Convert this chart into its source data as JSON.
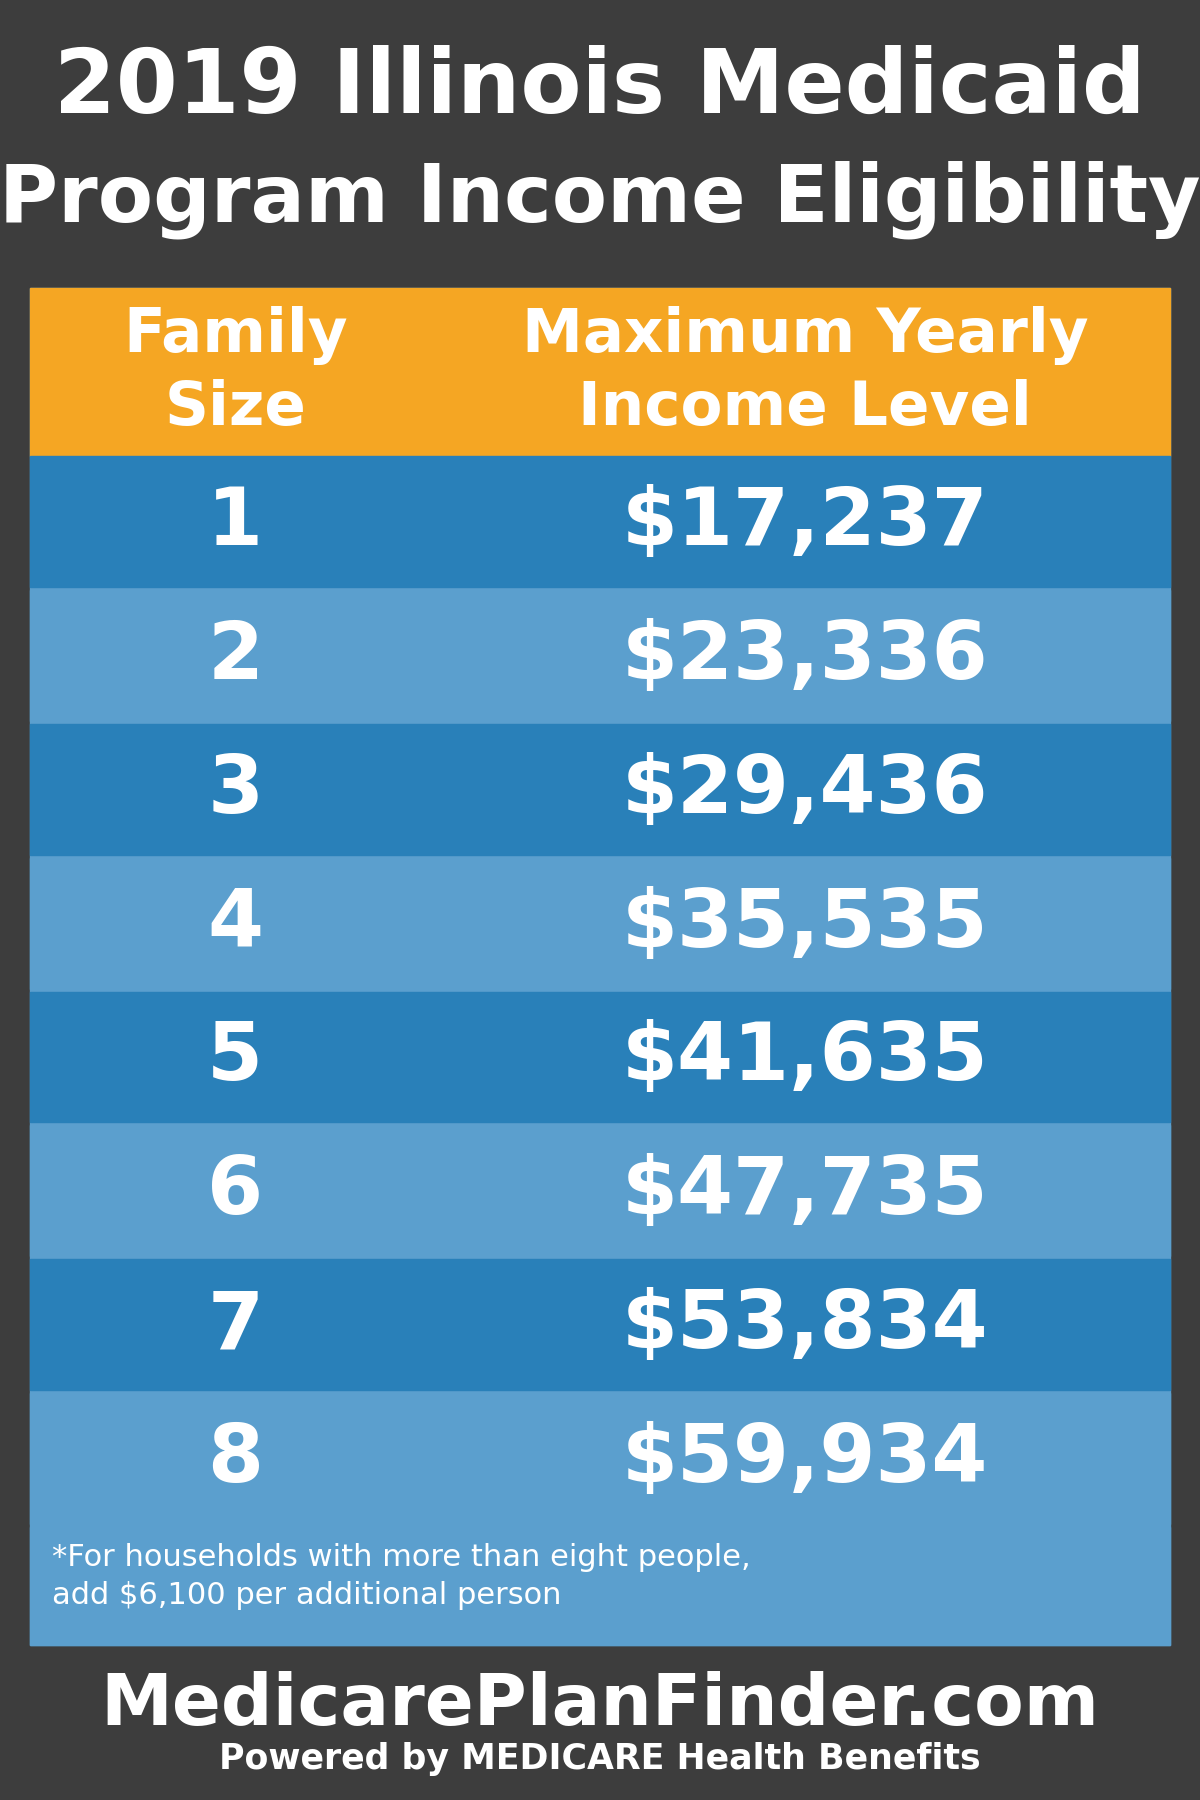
{
  "title_line1": "2019 Illinois Medicaid",
  "title_line2": "Program Income Eligibility",
  "title_bg": "#3d3d3d",
  "title_text_color": "#ffffff",
  "header_col1": "Family\nSize",
  "header_col2": "Maximum Yearly\nIncome Level",
  "header_bg": "#f5a623",
  "header_text_color": "#ffffff",
  "rows": [
    [
      "1",
      "$17,237"
    ],
    [
      "2",
      "$23,336"
    ],
    [
      "3",
      "$29,436"
    ],
    [
      "4",
      "$35,535"
    ],
    [
      "5",
      "$41,635"
    ],
    [
      "6",
      "$47,735"
    ],
    [
      "7",
      "$53,834"
    ],
    [
      "8",
      "$59,934"
    ]
  ],
  "row_colors": [
    "#2980b9",
    "#5b9fce",
    "#2980b9",
    "#5b9fce",
    "#2980b9",
    "#5b9fce",
    "#2980b9",
    "#5b9fce"
  ],
  "row_text_color": "#ffffff",
  "table_bg": "#5b9fce",
  "footnote_line1": "*For households with more than eight people,",
  "footnote_line2": "add $6,100 per additional person",
  "footnote_color": "#ffffff",
  "footer_bg": "#3d3d3d",
  "footer_main": "MedicarePlanFinder.com",
  "footer_sub": "Powered by MEDICARE Health Benefits",
  "footer_text_color": "#ffffff"
}
